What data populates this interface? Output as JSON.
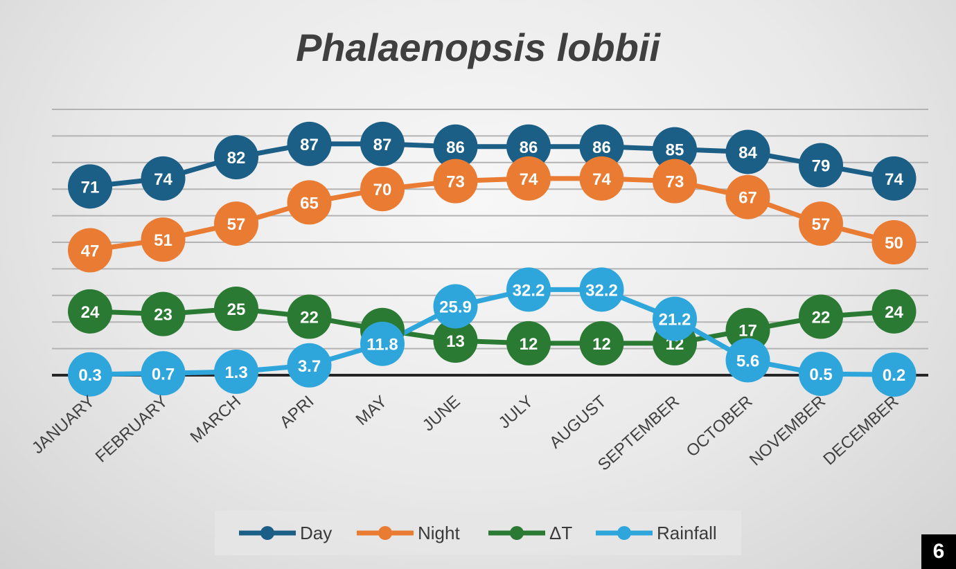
{
  "chart_data": {
    "type": "line",
    "title": "Phalaenopsis lobbii",
    "categories": [
      "JANUARY",
      "FEBRUARY",
      "MARCH",
      "APRI",
      "MAY",
      "JUNE",
      "JULY",
      "AUGUST",
      "SEPTEMBER",
      "OCTOBER",
      "NOVEMBER",
      "DECEMBER"
    ],
    "series": [
      {
        "name": "Day",
        "color": "#1b5e86",
        "values": [
          71,
          74,
          82,
          87,
          87,
          86,
          86,
          86,
          85,
          84,
          79,
          74
        ],
        "labels": [
          "71",
          "74",
          "82",
          "87",
          "87",
          "86",
          "86",
          "86",
          "85",
          "84",
          "79",
          "74"
        ]
      },
      {
        "name": "Night",
        "color": "#ea7b33",
        "values": [
          47,
          51,
          57,
          65,
          70,
          73,
          74,
          74,
          73,
          67,
          57,
          50
        ],
        "labels": [
          "47",
          "51",
          "57",
          "65",
          "70",
          "73",
          "74",
          "74",
          "73",
          "67",
          "57",
          "50"
        ]
      },
      {
        "name": "ΔT",
        "color": "#2a7a34",
        "values": [
          24,
          23,
          25,
          22,
          17,
          13,
          12,
          12,
          12,
          17,
          22,
          24
        ],
        "labels": [
          "24",
          "23",
          "25",
          "22",
          "17",
          "13",
          "12",
          "12",
          "12",
          "17",
          "22",
          "24"
        ]
      },
      {
        "name": "Rainfall",
        "color": "#2fa6db",
        "values": [
          0.3,
          0.7,
          1.3,
          3.7,
          11.8,
          25.9,
          32.2,
          32.2,
          21.2,
          5.6,
          0.5,
          0.2
        ],
        "labels": [
          "0.3",
          "0.7",
          "1.3",
          "3.7",
          "11.8",
          "25.9",
          "32.2",
          "32.2",
          "21.2",
          "5.6",
          "0.5",
          "0.2"
        ]
      }
    ],
    "ylim": [
      0,
      100
    ],
    "grid": true,
    "legend": "bottom"
  },
  "page_number": "6"
}
